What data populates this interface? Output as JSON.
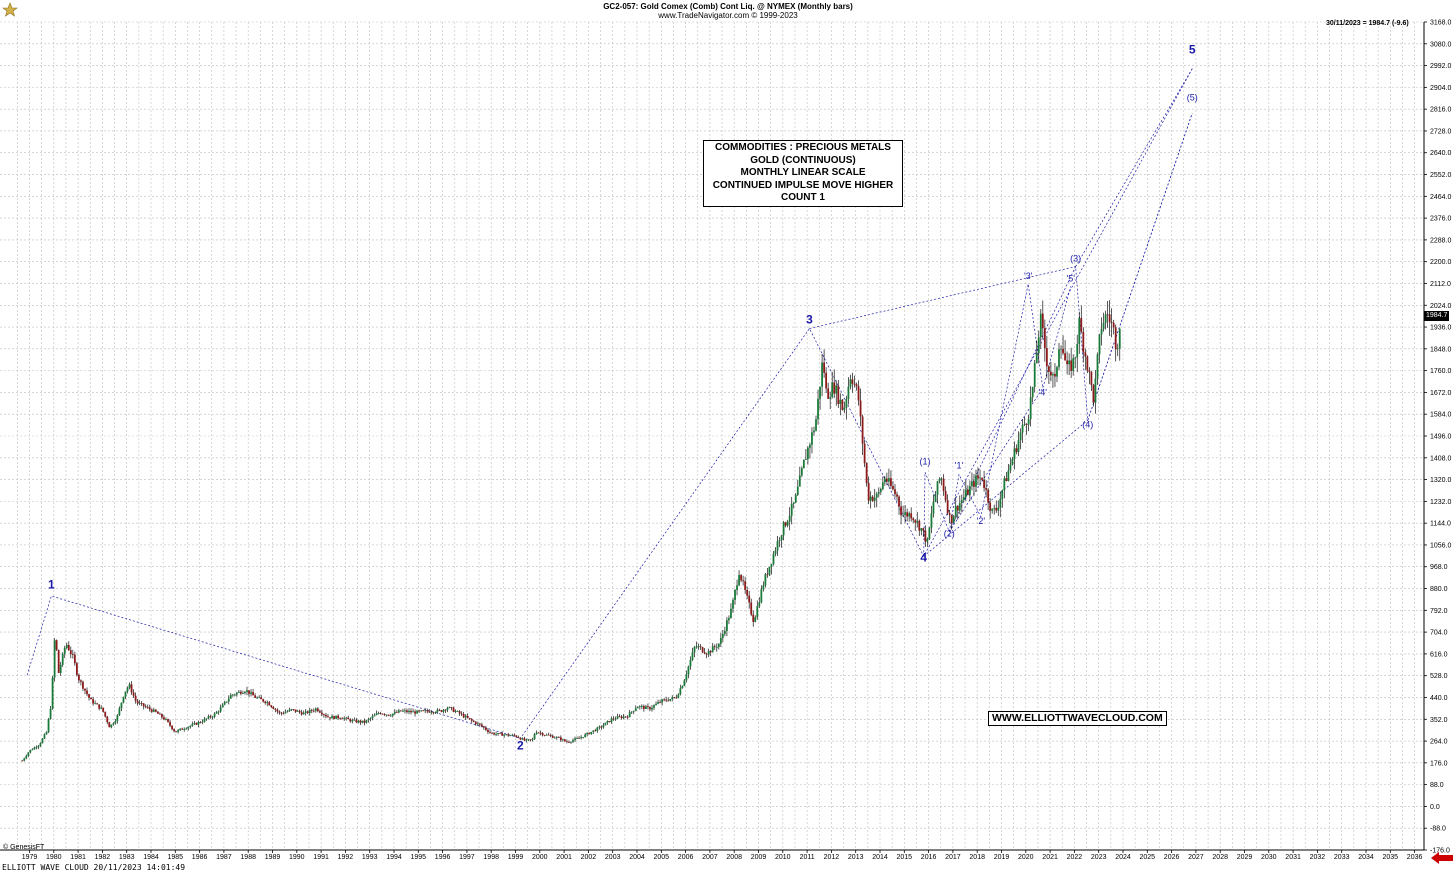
{
  "header": {
    "title": "GC2-057:  Gold Comex (Comb) Cont Liq. @ NYMEX  (Monthly bars)",
    "subtitle": "www.TradeNavigator.com © 1999-2023",
    "last_quote": "30/11/2023 = 1984.7 (-9.6)",
    "last_price_tag": "1984.7"
  },
  "annotation_box": {
    "lines": [
      "COMMODITIES : PRECIOUS METALS",
      "GOLD (CONTINUOUS)",
      "MONTHLY LINEAR SCALE",
      "CONTINUED IMPULSE MOVE HIGHER",
      "COUNT 1"
    ]
  },
  "website": "WWW.ELLIOTTWAVECLOUD.COM",
  "genesis": "© GenesisFT",
  "footer": "ELLIOTT WAVE CLOUD   20/11/2023 14:01:49",
  "colors": {
    "price_up": "#1a7a3a",
    "price_down": "#8b1a1a",
    "wave_labels": "#1a1aa8",
    "grid": "#bfbfbf",
    "arrow": "#cc0000"
  },
  "chart_data": {
    "type": "ohlc-monthly",
    "x_range": [
      1979,
      2037
    ],
    "ylim": [
      -176,
      3168
    ],
    "y_ticks": [
      -176.0,
      -88.0,
      0.0,
      88.0,
      176.0,
      264.0,
      352.0,
      440.0,
      528.0,
      616.0,
      704.0,
      792.0,
      880.0,
      968.0,
      1056.0,
      1144.0,
      1232.0,
      1320.0,
      1408.0,
      1496.0,
      1584.0,
      1672.0,
      1760.0,
      1848.0,
      1936.0,
      2024.0,
      2112.0,
      2200.0,
      2288.0,
      2376.0,
      2464.0,
      2552.0,
      2640.0,
      2728.0,
      2816.0,
      2904.0,
      2992.0,
      3080.0,
      3168.0
    ],
    "x_ticks": [
      "1979",
      "1980",
      "1981",
      "1982",
      "1983",
      "1984",
      "1985",
      "1986",
      "1987",
      "1988",
      "1989",
      "1990",
      "1991",
      "1992",
      "1993",
      "1994",
      "1995",
      "1996",
      "1997",
      "1998",
      "1999",
      "2000",
      "2001",
      "2002",
      "2003",
      "2004",
      "2005",
      "2006",
      "2007",
      "2008",
      "2009",
      "2010",
      "2011",
      "2012",
      "2013",
      "2014",
      "2015",
      "2016",
      "2017",
      "2018",
      "2019",
      "2020",
      "2021",
      "2022",
      "2023",
      "2024",
      "2025",
      "2026",
      "2027",
      "2028",
      "2029",
      "2030",
      "2031",
      "2032",
      "2033",
      "2034",
      "2035",
      "2036"
    ],
    "price_path": [
      [
        1978.7,
        185
      ],
      [
        1979.0,
        225
      ],
      [
        1979.4,
        250
      ],
      [
        1979.7,
        300
      ],
      [
        1979.9,
        420
      ],
      [
        1980.05,
        700
      ],
      [
        1980.2,
        540
      ],
      [
        1980.5,
        660
      ],
      [
        1980.8,
        600
      ],
      [
        1981.0,
        520
      ],
      [
        1981.5,
        430
      ],
      [
        1982.0,
        390
      ],
      [
        1982.3,
        320
      ],
      [
        1982.6,
        360
      ],
      [
        1982.9,
        460
      ],
      [
        1983.1,
        490
      ],
      [
        1983.4,
        420
      ],
      [
        1983.8,
        400
      ],
      [
        1984.2,
        380
      ],
      [
        1984.6,
        350
      ],
      [
        1985.0,
        300
      ],
      [
        1985.2,
        310
      ],
      [
        1985.6,
        325
      ],
      [
        1986.0,
        340
      ],
      [
        1986.6,
        370
      ],
      [
        1986.9,
        400
      ],
      [
        1987.3,
        450
      ],
      [
        1987.9,
        470
      ],
      [
        1988.3,
        440
      ],
      [
        1988.8,
        420
      ],
      [
        1989.3,
        375
      ],
      [
        1989.8,
        390
      ],
      [
        1990.3,
        375
      ],
      [
        1990.8,
        395
      ],
      [
        1991.3,
        360
      ],
      [
        1991.8,
        360
      ],
      [
        1992.3,
        345
      ],
      [
        1992.8,
        340
      ],
      [
        1993.4,
        380
      ],
      [
        1993.8,
        370
      ],
      [
        1994.3,
        385
      ],
      [
        1994.9,
        380
      ],
      [
        1995.4,
        385
      ],
      [
        1995.9,
        385
      ],
      [
        1996.2,
        400
      ],
      [
        1996.7,
        375
      ],
      [
        1997.2,
        345
      ],
      [
        1997.6,
        325
      ],
      [
        1998.0,
        295
      ],
      [
        1998.5,
        290
      ],
      [
        1999.0,
        285
      ],
      [
        1999.4,
        265
      ],
      [
        1999.75,
        270
      ],
      [
        1999.8,
        305
      ],
      [
        2000.2,
        290
      ],
      [
        2000.8,
        275
      ],
      [
        2001.1,
        260
      ],
      [
        2001.6,
        275
      ],
      [
        2002.0,
        295
      ],
      [
        2002.5,
        320
      ],
      [
        2003.0,
        355
      ],
      [
        2003.6,
        365
      ],
      [
        2004.0,
        405
      ],
      [
        2004.5,
        395
      ],
      [
        2005.0,
        425
      ],
      [
        2005.6,
        440
      ],
      [
        2005.9,
        500
      ],
      [
        2006.4,
        650
      ],
      [
        2006.9,
        620
      ],
      [
        2007.4,
        660
      ],
      [
        2007.9,
        800
      ],
      [
        2008.2,
        950
      ],
      [
        2008.8,
        750
      ],
      [
        2009.2,
        900
      ],
      [
        2009.9,
        1100
      ],
      [
        2010.5,
        1230
      ],
      [
        2010.9,
        1400
      ],
      [
        2011.35,
        1550
      ],
      [
        2011.65,
        1810
      ],
      [
        2011.8,
        1660
      ],
      [
        2012.1,
        1700
      ],
      [
        2012.5,
        1600
      ],
      [
        2012.8,
        1750
      ],
      [
        2013.1,
        1660
      ],
      [
        2013.5,
        1250
      ],
      [
        2013.9,
        1250
      ],
      [
        2014.2,
        1330
      ],
      [
        2014.7,
        1250
      ],
      [
        2014.9,
        1180
      ],
      [
        2015.3,
        1180
      ],
      [
        2015.7,
        1120
      ],
      [
        2015.95,
        1065
      ],
      [
        2016.2,
        1230
      ],
      [
        2016.5,
        1340
      ],
      [
        2016.9,
        1150
      ],
      [
        2017.1,
        1200
      ],
      [
        2017.6,
        1270
      ],
      [
        2017.95,
        1320
      ],
      [
        2018.2,
        1330
      ],
      [
        2018.6,
        1190
      ],
      [
        2018.8,
        1200
      ],
      [
        2019.1,
        1300
      ],
      [
        2019.5,
        1420
      ],
      [
        2019.8,
        1510
      ],
      [
        2020.1,
        1580
      ],
      [
        2020.3,
        1700
      ],
      [
        2020.6,
        1970
      ],
      [
        2020.9,
        1780
      ],
      [
        2021.2,
        1710
      ],
      [
        2021.4,
        1900
      ],
      [
        2021.7,
        1760
      ],
      [
        2022.0,
        1800
      ],
      [
        2022.2,
        1950
      ],
      [
        2022.5,
        1800
      ],
      [
        2022.8,
        1640
      ],
      [
        2022.95,
        1800
      ],
      [
        2023.1,
        1940
      ],
      [
        2023.35,
        1990
      ],
      [
        2023.6,
        1930
      ],
      [
        2023.75,
        1850
      ],
      [
        2023.9,
        1985
      ]
    ],
    "wave_labels": [
      {
        "text": "1",
        "x": 1979.9,
        "y": 880
      },
      {
        "text": "2",
        "x": 1999.2,
        "y": 230
      },
      {
        "text": "3",
        "x": 2011.1,
        "y": 1950
      },
      {
        "text": "4",
        "x": 2015.8,
        "y": 990
      },
      {
        "text": "5",
        "x": 2026.85,
        "y": 3040
      },
      {
        "text": "(1)",
        "x": 2015.85,
        "y": 1380
      },
      {
        "text": "(2)",
        "x": 2016.85,
        "y": 1090
      },
      {
        "text": "(3)",
        "x": 2022.05,
        "y": 2200
      },
      {
        "text": "(4)",
        "x": 2022.55,
        "y": 1530
      },
      {
        "text": "(5)",
        "x": 2026.85,
        "y": 2850
      },
      {
        "text": "'1'",
        "x": 2017.25,
        "y": 1365
      },
      {
        "text": "'2'",
        "x": 2018.15,
        "y": 1140
      },
      {
        "text": "'3'",
        "x": 2020.1,
        "y": 2130
      },
      {
        "text": "'4'",
        "x": 2020.7,
        "y": 1660
      },
      {
        "text": "'5'",
        "x": 2021.85,
        "y": 2120
      }
    ],
    "wave_lines": [
      [
        [
          1978.9,
          530
        ],
        [
          1979.9,
          850
        ],
        [
          1999.2,
          275
        ],
        [
          2011.1,
          1930
        ],
        [
          2015.8,
          1010
        ],
        [
          2026.85,
          2980
        ]
      ],
      [
        [
          2015.8,
          1010
        ],
        [
          2015.85,
          1350
        ],
        [
          2016.85,
          1110
        ],
        [
          2022.05,
          2180
        ],
        [
          2022.55,
          1560
        ],
        [
          2026.85,
          2800
        ]
      ],
      [
        [
          2016.85,
          1110
        ],
        [
          2017.25,
          1340
        ],
        [
          2018.15,
          1170
        ],
        [
          2020.1,
          2110
        ],
        [
          2020.7,
          1690
        ],
        [
          2021.85,
          2100
        ]
      ],
      [
        [
          2011.1,
          1930
        ],
        [
          2022.05,
          2180
        ]
      ],
      [
        [
          2015.8,
          1010
        ],
        [
          2022.55,
          1560
        ]
      ],
      [
        [
          2016.85,
          1110
        ],
        [
          2020.7,
          1690
        ]
      ],
      [
        [
          2022.05,
          2180
        ],
        [
          2026.85,
          2980
        ]
      ],
      [
        [
          2022.55,
          1560
        ],
        [
          2026.85,
          2800
        ]
      ]
    ]
  }
}
